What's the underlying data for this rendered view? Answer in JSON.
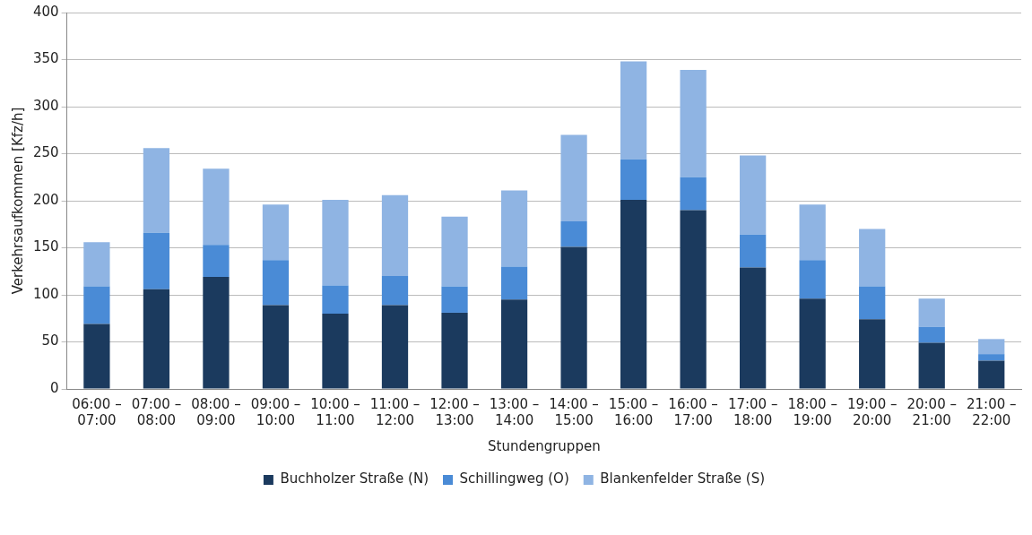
{
  "chart_data": {
    "type": "bar",
    "stacked": true,
    "xlabel": "Stundengruppen",
    "ylabel": "Verkehrsaufkommen [Kfz/h]",
    "categories": [
      "06:00 – 07:00",
      "07:00 – 08:00",
      "08:00 – 09:00",
      "09:00 – 10:00",
      "10:00 – 11:00",
      "11:00 – 12:00",
      "12:00 – 13:00",
      "13:00 – 14:00",
      "14:00 – 15:00",
      "15:00 – 16:00",
      "16:00 – 17:00",
      "17:00 – 18:00",
      "18:00 – 19:00",
      "19:00 – 20:00",
      "20:00 – 21:00",
      "21:00 – 22:00"
    ],
    "series": [
      {
        "name": "Buchholzer Straße (N)",
        "color": "#1b3a5e",
        "values": [
          69,
          106,
          119,
          89,
          80,
          89,
          81,
          95,
          151,
          201,
          190,
          129,
          96,
          74,
          49,
          30
        ]
      },
      {
        "name": "Schillingweg (O)",
        "color": "#4a8bd6",
        "values": [
          40,
          60,
          34,
          48,
          30,
          31,
          28,
          35,
          27,
          43,
          35,
          35,
          41,
          35,
          17,
          7
        ]
      },
      {
        "name": "Blankenfelder Straße (S)",
        "color": "#8fb4e3",
        "values": [
          47,
          90,
          81,
          59,
          91,
          86,
          74,
          81,
          92,
          104,
          114,
          84,
          59,
          61,
          30,
          16
        ]
      }
    ],
    "ylim": [
      0,
      400
    ],
    "yticks": [
      0,
      50,
      100,
      150,
      200,
      250,
      300,
      350,
      400
    ],
    "grid": "y",
    "legend": "bottom"
  }
}
